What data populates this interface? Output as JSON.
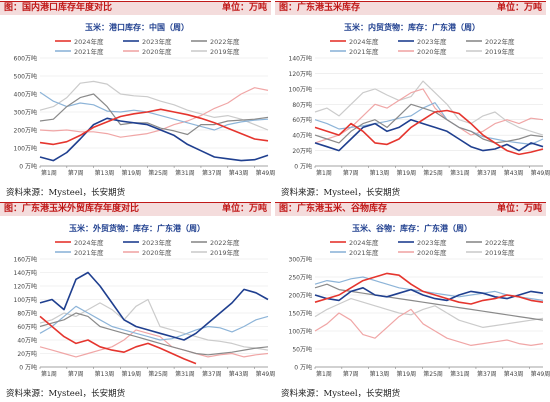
{
  "panels": [
    {
      "title": "图：国内港口库存年度对比",
      "unit": "单位：万吨",
      "source": "资料来源：Mysteel，长安期货",
      "chart_data": {
        "type": "line",
        "title": "玉米：港口库存：中国（周）",
        "ylim": [
          0,
          600
        ],
        "yticks": [
          0,
          100,
          200,
          300,
          400,
          500,
          600
        ],
        "ytick_labels": [
          "0 万吨",
          "100万吨",
          "200万吨",
          "300万吨",
          "400万吨",
          "500万吨",
          "600万吨"
        ],
        "x_tick_labels": [
          "第1周",
          "第7周",
          "第13周",
          "第19周",
          "第25周",
          "第31周",
          "第37周",
          "第43周",
          "第49周"
        ],
        "series": [
          {
            "name": "2024年度",
            "color": "#e5352e",
            "width": 1.6,
            "values": [
              130,
              120,
              135,
              170,
              215,
              245,
              275,
              290,
              300,
              315,
              300,
              285,
              265,
              240,
              210,
              180,
              150,
              140
            ]
          },
          {
            "name": "2023年度",
            "color": "#1f3f8f",
            "width": 1.6,
            "values": [
              50,
              30,
              75,
              150,
              230,
              265,
              250,
              240,
              230,
              200,
              170,
              120,
              85,
              50,
              40,
              30,
              35,
              60
            ]
          },
          {
            "name": "2022年度",
            "color": "#8a8a8a",
            "width": 1.2,
            "values": [
              250,
              260,
              330,
              380,
              400,
              330,
              230,
              240,
              240,
              210,
              195,
              175,
              230,
              230,
              250,
              255,
              260,
              270
            ]
          },
          {
            "name": "2021年度",
            "color": "#8db4d8",
            "width": 1.2,
            "values": [
              410,
              360,
              330,
              350,
              340,
              305,
              300,
              310,
              300,
              280,
              260,
              240,
              220,
              200,
              230,
              245,
              255,
              260
            ]
          },
          {
            "name": "2020年度",
            "color": "#f0a6a6",
            "width": 1.2,
            "values": [
              200,
              195,
              200,
              190,
              190,
              180,
              160,
              170,
              180,
              200,
              230,
              250,
              280,
              320,
              350,
              400,
              435,
              420
            ]
          },
          {
            "name": "2019年度",
            "color": "#cbcbcb",
            "width": 1.2,
            "values": [
              310,
              330,
              380,
              460,
              470,
              455,
              400,
              390,
              385,
              360,
              340,
              310,
              290,
              270,
              280,
              260,
              230,
              200
            ]
          }
        ]
      }
    },
    {
      "title": "图：广东港玉米库存",
      "unit": "单位：万吨",
      "source": "资料来源：Mysteel，长安期货",
      "chart_data": {
        "type": "line",
        "title": "玉米：内贸货物：库存：广东港（周）",
        "ylim": [
          0,
          140
        ],
        "yticks": [
          0,
          20,
          40,
          60,
          80,
          100,
          120,
          140
        ],
        "ytick_labels": [
          "0 万吨",
          "20万吨",
          "40万吨",
          "60万吨",
          "80万吨",
          "100万吨",
          "120万吨",
          "140万吨"
        ],
        "x_tick_labels": [
          "第1周",
          "第7周",
          "第13周",
          "第19周",
          "第25周",
          "第31周",
          "第37周",
          "第43周",
          "第49周"
        ],
        "series": [
          {
            "name": "2024年度",
            "color": "#e5352e",
            "width": 1.6,
            "values": [
              50,
              45,
              40,
              55,
              45,
              30,
              28,
              35,
              50,
              60,
              70,
              72,
              68,
              55,
              40,
              30,
              20,
              15,
              18,
              22
            ]
          },
          {
            "name": "2023年度",
            "color": "#1f3f8f",
            "width": 1.6,
            "values": [
              30,
              25,
              20,
              35,
              50,
              55,
              45,
              50,
              60,
              55,
              50,
              45,
              35,
              25,
              20,
              22,
              28,
              20,
              30,
              25
            ]
          },
          {
            "name": "2022年度",
            "color": "#8a8a8a",
            "width": 1.2,
            "values": [
              40,
              35,
              30,
              45,
              55,
              60,
              50,
              65,
              80,
              75,
              70,
              60,
              50,
              45,
              35,
              30,
              32,
              35,
              40,
              38
            ]
          },
          {
            "name": "2021年度",
            "color": "#8db4d8",
            "width": 1.2,
            "values": [
              60,
              55,
              48,
              50,
              52,
              55,
              58,
              62,
              65,
              75,
              82,
              60,
              50,
              45,
              38,
              35,
              32,
              30,
              28,
              35
            ]
          },
          {
            "name": "2020年度",
            "color": "#f0a6a6",
            "width": 1.2,
            "values": [
              30,
              35,
              40,
              50,
              65,
              80,
              75,
              85,
              95,
              100,
              75,
              60,
              50,
              40,
              45,
              55,
              60,
              55,
              62,
              60
            ]
          },
          {
            "name": "2019年度",
            "color": "#cbcbcb",
            "width": 1.2,
            "values": [
              70,
              75,
              65,
              80,
              95,
              100,
              92,
              85,
              90,
              110,
              95,
              80,
              60,
              55,
              65,
              70,
              58,
              50,
              45,
              40
            ]
          }
        ]
      }
    },
    {
      "title": "图：广东港玉米外贸库存年度对比",
      "unit": "单位：万吨",
      "source": "资料来源：Mysteel，长安期货",
      "chart_data": {
        "type": "line",
        "title": "玉米：外贸货物：库存：广东港（周）",
        "ylim": [
          0,
          160
        ],
        "yticks": [
          0,
          20,
          40,
          60,
          80,
          100,
          120,
          140,
          160
        ],
        "ytick_labels": [
          "0 万吨",
          "20万吨",
          "40万吨",
          "60万吨",
          "80万吨",
          "100万吨",
          "120万吨",
          "140万吨",
          "160万吨"
        ],
        "x_tick_labels": [
          "第1周",
          "第7周",
          "第13周",
          "第19周",
          "第25周",
          "第31周",
          "第37周",
          "第43周",
          "第49周"
        ],
        "series": [
          {
            "name": "2024年度",
            "color": "#e5352e",
            "width": 1.6,
            "values": [
              75,
              60,
              45,
              35,
              40,
              30,
              25,
              22,
              30,
              35,
              28,
              20,
              12,
              5
            ]
          },
          {
            "name": "2023年度",
            "color": "#1f3f8f",
            "width": 1.6,
            "values": [
              95,
              100,
              85,
              130,
              140,
              120,
              95,
              70,
              60,
              55,
              50,
              45,
              40,
              50,
              65,
              80,
              95,
              115,
              110,
              100
            ]
          },
          {
            "name": "2022年度",
            "color": "#8a8a8a",
            "width": 1.2,
            "values": [
              60,
              65,
              70,
              80,
              75,
              60,
              55,
              50,
              45,
              40,
              35,
              30,
              25,
              20,
              18,
              20,
              22,
              25,
              28,
              30
            ]
          },
          {
            "name": "2021年度",
            "color": "#8db4d8",
            "width": 1.2,
            "values": [
              50,
              60,
              75,
              90,
              80,
              70,
              60,
              55,
              50,
              45,
              40,
              42,
              48,
              55,
              60,
              58,
              52,
              60,
              70,
              75
            ]
          },
          {
            "name": "2020年度",
            "color": "#f0a6a6",
            "width": 1.2,
            "values": [
              30,
              25,
              20,
              15,
              20,
              25,
              30,
              40,
              55,
              50,
              45,
              30,
              25,
              20,
              15,
              18,
              20,
              15,
              18,
              20
            ]
          },
          {
            "name": "2019年度",
            "color": "#cbcbcb",
            "width": 1.2,
            "values": [
              65,
              70,
              80,
              75,
              85,
              95,
              85,
              70,
              90,
              100,
              60,
              55,
              50,
              45,
              40,
              38,
              35,
              30,
              28,
              25
            ]
          }
        ]
      }
    },
    {
      "title": "图：广东港玉米、谷物库存",
      "unit": "单位：万吨",
      "source": "资料来源：Mysteel，长安期货",
      "chart_data": {
        "type": "line",
        "title": "玉米、谷物：库存：广东港（周）",
        "ylim": [
          0,
          300
        ],
        "yticks": [
          0,
          50,
          100,
          150,
          200,
          250,
          300
        ],
        "ytick_labels": [
          "0 万吨",
          "50万吨",
          "100万吨",
          "150万吨",
          "200万吨",
          "250万吨",
          "300万吨"
        ],
        "x_tick_labels": [
          "第1周",
          "第7周",
          "第13周",
          "第19周",
          "第25周",
          "第31周",
          "第37周",
          "第43周",
          "第49周"
        ],
        "series": [
          {
            "name": "2024年度",
            "color": "#e5352e",
            "width": 1.6,
            "values": [
              180,
              190,
              200,
              220,
              240,
              250,
              260,
              255,
              230,
              210,
              200,
              190,
              180,
              175,
              185,
              190,
              200,
              195,
              185,
              180
            ]
          },
          {
            "name": "2023年度",
            "color": "#1f3f8f",
            "width": 1.6,
            "values": [
              200,
              190,
              185,
              210,
              220,
              200,
              195,
              205,
              215,
              200,
              190,
              185,
              200,
              210,
              205,
              195,
              190,
              200,
              210,
              205
            ]
          },
          {
            "name": "2022年度",
            "color": "#8a8a8a",
            "width": 1.2,
            "values": [
              220,
              230,
              215,
              210,
              205,
              200,
              195,
              190,
              185,
              180,
              175,
              170,
              165,
              160,
              155,
              150,
              145,
              140,
              135,
              130
            ]
          },
          {
            "name": "2021年度",
            "color": "#8db4d8",
            "width": 1.2,
            "values": [
              230,
              240,
              235,
              245,
              250,
              240,
              230,
              220,
              215,
              210,
              205,
              200,
              195,
              200,
              205,
              210,
              200,
              195,
              190,
              185
            ]
          },
          {
            "name": "2020年度",
            "color": "#f0a6a6",
            "width": 1.2,
            "values": [
              100,
              120,
              150,
              130,
              90,
              80,
              110,
              140,
              160,
              120,
              100,
              80,
              70,
              60,
              65,
              70,
              75,
              65,
              60,
              65
            ]
          },
          {
            "name": "2019年度",
            "color": "#cbcbcb",
            "width": 1.2,
            "values": [
              140,
              160,
              175,
              190,
              180,
              170,
              160,
              150,
              145,
              160,
              170,
              150,
              130,
              120,
              110,
              115,
              120,
              125,
              130,
              135
            ]
          }
        ]
      }
    }
  ]
}
